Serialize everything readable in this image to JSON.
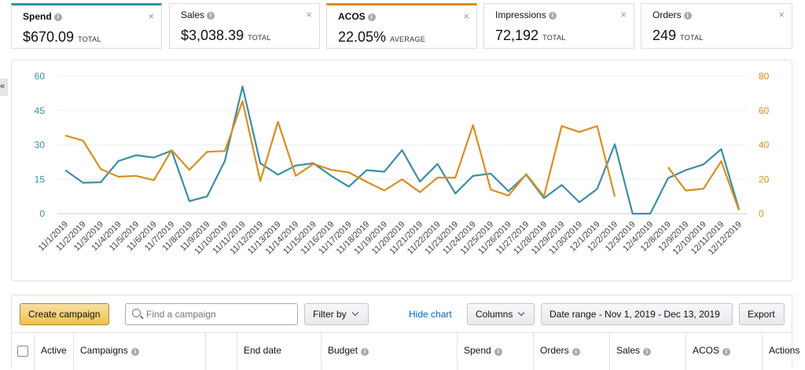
{
  "metrics": [
    {
      "name": "Spend",
      "value": "$670.09",
      "sub": "TOTAL",
      "accent": "#3b8ea5",
      "active": true
    },
    {
      "name": "Sales",
      "value": "$3,038.39",
      "sub": "TOTAL",
      "accent": "",
      "active": false
    },
    {
      "name": "ACOS",
      "value": "22.05%",
      "sub": "AVERAGE",
      "accent": "#d98e1f",
      "active": true
    },
    {
      "name": "Impressions",
      "value": "72,192",
      "sub": "TOTAL",
      "accent": "",
      "active": false
    },
    {
      "name": "Orders",
      "value": "249",
      "sub": "TOTAL",
      "accent": "",
      "active": false
    }
  ],
  "icons": {
    "info": "info-icon",
    "close": "close-icon",
    "collapse": "double-chevron-left-icon",
    "search": "search-icon"
  },
  "collapse_glyph": "«",
  "close_glyph": "×",
  "info_glyph": "i",
  "chart_data": {
    "type": "line",
    "left_axis": {
      "ticks": [
        "60",
        "45",
        "30",
        "15",
        "0"
      ],
      "ylim": [
        0,
        60
      ],
      "color": "#3b8ea5"
    },
    "right_axis": {
      "ticks": [
        "80",
        "60",
        "40",
        "20",
        "0"
      ],
      "ylim": [
        0,
        80
      ],
      "color": "#d98e1f"
    },
    "categories": [
      "11/1/2019",
      "11/2/2019",
      "11/3/2019",
      "11/4/2019",
      "11/5/2019",
      "11/6/2019",
      "11/7/2019",
      "11/8/2019",
      "11/9/2019",
      "11/10/2019",
      "11/11/2019",
      "11/12/2019",
      "11/13/2019",
      "11/14/2019",
      "11/15/2019",
      "11/16/2019",
      "11/17/2019",
      "11/18/2019",
      "11/19/2019",
      "11/20/2019",
      "11/21/2019",
      "11/22/2019",
      "11/23/2019",
      "11/24/2019",
      "11/25/2019",
      "11/26/2019",
      "11/27/2019",
      "11/28/2019",
      "11/29/2019",
      "11/30/2019",
      "12/1/2019",
      "12/2/2019",
      "12/3/2019",
      "12/4/2019",
      "12/8/2019",
      "12/9/2019",
      "12/10/2019",
      "12/11/2019",
      "12/12/2019"
    ],
    "series": [
      {
        "axis": "left",
        "color": "#3b8ea5",
        "values": [
          19,
          13.5,
          13.7,
          23,
          25.5,
          24.5,
          27.5,
          5.5,
          7.5,
          23,
          55.5,
          22,
          17,
          21,
          22,
          16.5,
          11.8,
          19,
          18.3,
          27.7,
          14,
          21.7,
          8.8,
          16.5,
          17.5,
          9.8,
          17,
          6.8,
          12.5,
          5,
          10.8,
          30.3,
          0,
          0,
          15.5,
          19,
          21.5,
          28.2,
          2
        ]
      },
      {
        "axis": "right",
        "color": "#d98e1f",
        "values": [
          45.5,
          42.5,
          26,
          21.5,
          22,
          19.5,
          37,
          25.5,
          36,
          36.5,
          65.5,
          19,
          53.5,
          22,
          29,
          25.5,
          24,
          18.5,
          13.5,
          20,
          12.5,
          21,
          21,
          51.5,
          14,
          10.5,
          23,
          10,
          51,
          47.5,
          51,
          10,
          null,
          null,
          27,
          13.5,
          14.5,
          30.5,
          2
        ]
      }
    ],
    "grid": true
  },
  "toolbar": {
    "create_label": "Create campaign",
    "search_placeholder": "Find a campaign",
    "filter_label": "Filter by",
    "hide_chart_label": "Hide chart",
    "columns_label": "Columns",
    "date_range_label": "Date range - Nov 1, 2019 - Dec 13, 2019",
    "export_label": "Export"
  },
  "table": {
    "columns": [
      {
        "label": "",
        "info": false
      },
      {
        "label": "Active",
        "info": false
      },
      {
        "label": "Campaigns",
        "info": true
      },
      {
        "label": "",
        "info": false
      },
      {
        "label": "End date",
        "info": false
      },
      {
        "label": "Budget",
        "info": true
      },
      {
        "label": "Spend",
        "info": true
      },
      {
        "label": "Orders",
        "info": true
      },
      {
        "label": "Sales",
        "info": true
      },
      {
        "label": "ACOS",
        "info": true
      },
      {
        "label": "Actions",
        "info": false
      }
    ]
  }
}
